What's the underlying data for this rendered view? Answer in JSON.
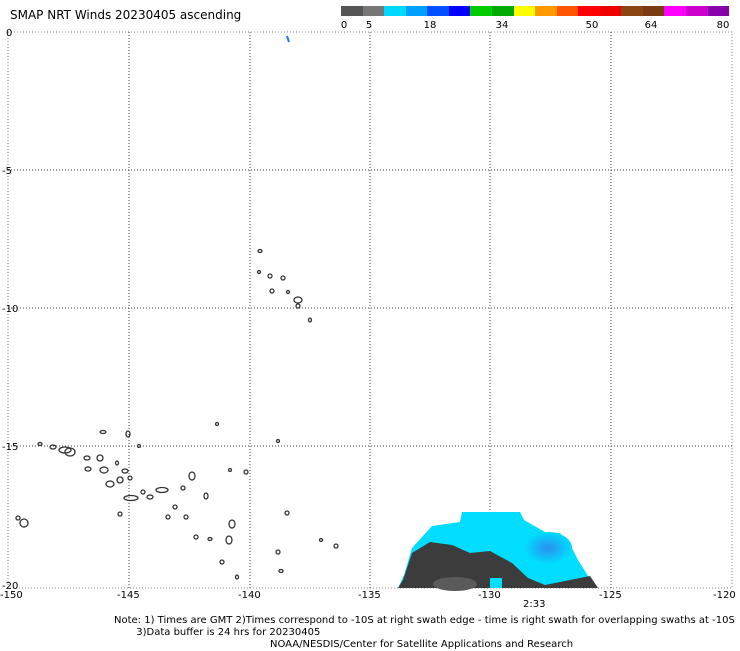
{
  "title": "SMAP NRT Winds 20230405 ascending",
  "colorbar": {
    "tick_labels": [
      "0",
      "5",
      "18",
      "34",
      "50",
      "64",
      "80"
    ],
    "tick_values": [
      0,
      5,
      18,
      34,
      50,
      64,
      80
    ],
    "colors": [
      "#555555",
      "#777777",
      "#00d8ff",
      "#00a0ff",
      "#0050ff",
      "#0000ff",
      "#00cc00",
      "#00aa00",
      "#ffff00",
      "#ff9900",
      "#ff5500",
      "#ff0000",
      "#ee0000",
      "#8b4513",
      "#7a3b10",
      "#ff00ff",
      "#cc00cc",
      "#8800aa"
    ]
  },
  "map": {
    "lon_ticks": [
      "-150",
      "-145",
      "-140",
      "-135",
      "-130",
      "-125",
      "-120"
    ],
    "lat_ticks": [
      "0",
      "-5",
      "-10",
      "-15",
      "-20"
    ],
    "lon_range": [
      -150,
      -120
    ],
    "lat_range": [
      0,
      -20
    ]
  },
  "time_label": "2:33",
  "notes": [
    "Note: 1) Times are GMT 2)Times correspond to -10S at right swath edge - time is right swath for overlapping swaths at -10S",
    "       3)Data buffer is 24 hrs for 20230405",
    "NOAA/NESDIS/Center for Satellite Applications and Research"
  ],
  "colors": {
    "swath_light": "#00ddff",
    "swath_mid": "#30b8ff",
    "swath_dark": "#3a3a3a",
    "swath_gray": "#555555"
  }
}
